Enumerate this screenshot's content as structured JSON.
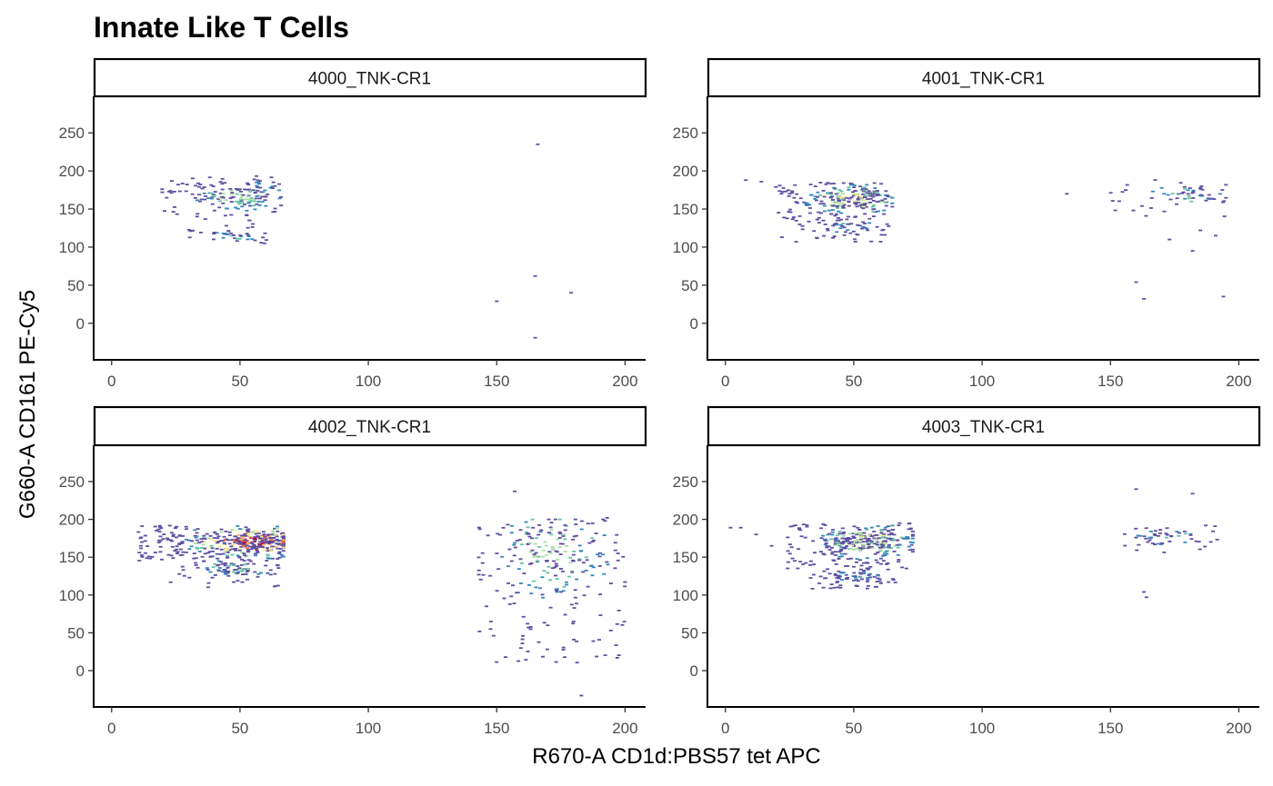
{
  "chart_data": {
    "type": "heatmap",
    "subtype": "hexbin-density-facets",
    "title": "Innate Like T Cells",
    "xlabel": "R670-A CD1d:PBS57 tet APC",
    "ylabel": "G660-A CD161 PE-Cy5",
    "xlim": [
      -7,
      208
    ],
    "ylim": [
      -48,
      298
    ],
    "x_ticks": [
      0,
      50,
      100,
      150,
      200
    ],
    "y_ticks": [
      0,
      50,
      100,
      150,
      200,
      250
    ],
    "grid": false,
    "legend": "none",
    "color_scale": [
      "#5E4FA2",
      "#3288BD",
      "#66C2A5",
      "#ABDDA4",
      "#E6F598",
      "#FEE08B",
      "#FDAE61",
      "#F46D43",
      "#D53E4F",
      "#9E0142"
    ],
    "facets": [
      {
        "name": "4000_TNK-CR1",
        "clusters": [
          {
            "x": [
              19,
              66
            ],
            "y": [
              140,
              195
            ],
            "n": 170,
            "peak": [
              50,
              168
            ],
            "intensity": 0.35
          },
          {
            "x": [
              30,
              63
            ],
            "y": [
              105,
              140
            ],
            "n": 45,
            "peak": [
              50,
              115
            ],
            "intensity": 0.25
          }
        ],
        "outliers": [
          [
            166,
            235
          ],
          [
            165,
            62
          ],
          [
            179,
            40
          ],
          [
            150,
            29
          ],
          [
            165,
            -19
          ]
        ]
      },
      {
        "name": "4001_TNK-CR1",
        "clusters": [
          {
            "x": [
              19,
              65
            ],
            "y": [
              135,
              185
            ],
            "n": 250,
            "peak": [
              50,
              162
            ],
            "intensity": 0.5
          },
          {
            "x": [
              27,
              64
            ],
            "y": [
              105,
              135
            ],
            "n": 60,
            "peak": [
              48,
              128
            ],
            "intensity": 0.2
          },
          {
            "x": [
              150,
              195
            ],
            "y": [
              140,
              190
            ],
            "n": 60,
            "peak": [
              180,
              168
            ],
            "intensity": 0.25
          }
        ],
        "outliers": [
          [
            8,
            188
          ],
          [
            14,
            186
          ],
          [
            22,
            113
          ],
          [
            133,
            170
          ],
          [
            173,
            110
          ],
          [
            182,
            95
          ],
          [
            185,
            122
          ],
          [
            191,
            115
          ],
          [
            160,
            54
          ],
          [
            163,
            32
          ],
          [
            194,
            35
          ]
        ]
      },
      {
        "name": "4002_TNK-CR1",
        "clusters": [
          {
            "x": [
              10,
              67
            ],
            "y": [
              145,
              192
            ],
            "n": 420,
            "peak": [
              55,
              170
            ],
            "intensity": 1.0
          },
          {
            "x": [
              25,
              65
            ],
            "y": [
              110,
              145
            ],
            "n": 90,
            "peak": [
              48,
              135
            ],
            "intensity": 0.3
          },
          {
            "x": [
              143,
              200
            ],
            "y": [
              10,
              200
            ],
            "n": 260,
            "peak": [
              172,
              160
            ],
            "intensity": 0.35
          }
        ],
        "outliers": [
          [
            157,
            237
          ],
          [
            193,
            202
          ],
          [
            197,
            17
          ],
          [
            183,
            -33
          ],
          [
            23,
            117
          ],
          [
            146,
            85
          ],
          [
            160,
            36
          ]
        ]
      },
      {
        "name": "4003_TNK-CR1",
        "clusters": [
          {
            "x": [
              24,
              73
            ],
            "y": [
              135,
              195
            ],
            "n": 330,
            "peak": [
              55,
              172
            ],
            "intensity": 0.45
          },
          {
            "x": [
              32,
              68
            ],
            "y": [
              108,
              135
            ],
            "n": 80,
            "peak": [
              50,
              125
            ],
            "intensity": 0.2
          },
          {
            "x": [
              155,
              193
            ],
            "y": [
              155,
              192
            ],
            "n": 55,
            "peak": [
              173,
              178
            ],
            "intensity": 0.25
          }
        ],
        "outliers": [
          [
            2,
            189
          ],
          [
            6,
            189
          ],
          [
            12,
            180
          ],
          [
            160,
            240
          ],
          [
            182,
            234
          ],
          [
            163,
            104
          ],
          [
            164,
            97
          ],
          [
            18,
            165
          ]
        ]
      }
    ]
  }
}
